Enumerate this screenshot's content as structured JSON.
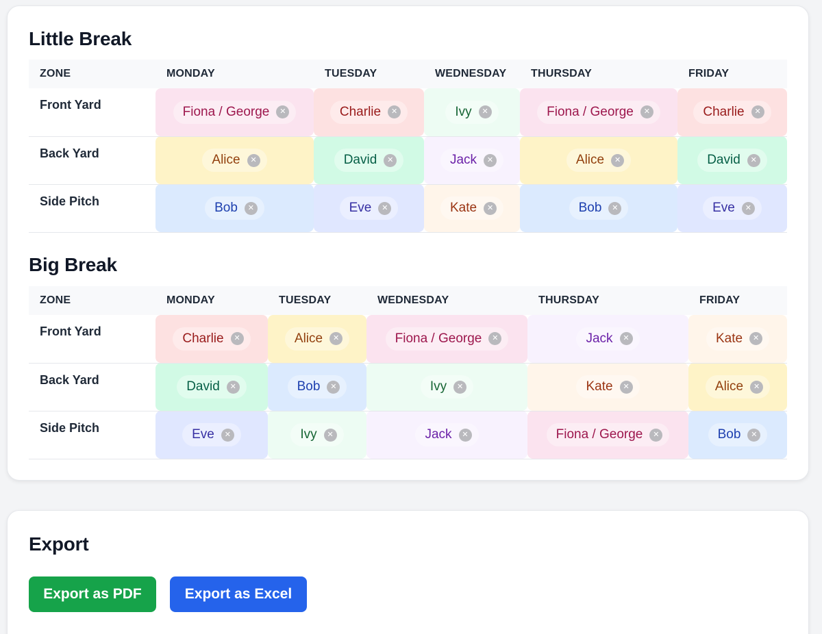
{
  "schedule": {
    "sections": [
      {
        "title": "Little Break",
        "headers": [
          "ZONE",
          "MONDAY",
          "TUESDAY",
          "WEDNESDAY",
          "THURSDAY",
          "FRIDAY"
        ],
        "rows": [
          {
            "zone": "Front Yard",
            "cells": [
              {
                "name": "Fiona / George",
                "color": "pink"
              },
              {
                "name": "Charlie",
                "color": "red"
              },
              {
                "name": "Ivy",
                "color": "mint"
              },
              {
                "name": "Fiona / George",
                "color": "pink"
              },
              {
                "name": "Charlie",
                "color": "red"
              }
            ]
          },
          {
            "zone": "Back Yard",
            "cells": [
              {
                "name": "Alice",
                "color": "yellow"
              },
              {
                "name": "David",
                "color": "green"
              },
              {
                "name": "Jack",
                "color": "lilac"
              },
              {
                "name": "Alice",
                "color": "yellow"
              },
              {
                "name": "David",
                "color": "green"
              }
            ]
          },
          {
            "zone": "Side Pitch",
            "cells": [
              {
                "name": "Bob",
                "color": "blue"
              },
              {
                "name": "Eve",
                "color": "indigo"
              },
              {
                "name": "Kate",
                "color": "peach"
              },
              {
                "name": "Bob",
                "color": "blue"
              },
              {
                "name": "Eve",
                "color": "indigo"
              }
            ]
          }
        ]
      },
      {
        "title": "Big Break",
        "headers": [
          "ZONE",
          "MONDAY",
          "TUESDAY",
          "WEDNESDAY",
          "THURSDAY",
          "FRIDAY"
        ],
        "rows": [
          {
            "zone": "Front Yard",
            "cells": [
              {
                "name": "Charlie",
                "color": "red"
              },
              {
                "name": "Alice",
                "color": "yellow"
              },
              {
                "name": "Fiona / George",
                "color": "pink"
              },
              {
                "name": "Jack",
                "color": "lilac"
              },
              {
                "name": "Kate",
                "color": "peach"
              }
            ]
          },
          {
            "zone": "Back Yard",
            "cells": [
              {
                "name": "David",
                "color": "green"
              },
              {
                "name": "Bob",
                "color": "blue"
              },
              {
                "name": "Ivy",
                "color": "mint"
              },
              {
                "name": "Kate",
                "color": "peach"
              },
              {
                "name": "Alice",
                "color": "yellow"
              }
            ]
          },
          {
            "zone": "Side Pitch",
            "cells": [
              {
                "name": "Eve",
                "color": "indigo"
              },
              {
                "name": "Ivy",
                "color": "mint"
              },
              {
                "name": "Jack",
                "color": "lilac"
              },
              {
                "name": "Fiona / George",
                "color": "pink"
              },
              {
                "name": "Bob",
                "color": "blue"
              }
            ]
          }
        ]
      }
    ],
    "remove_icon": "close-icon",
    "colors": {
      "pink": "#fbe3ef",
      "red": "#fde1e1",
      "mint": "#edfcf3",
      "yellow": "#fef3c7",
      "green": "#d1fae5",
      "lilac": "#f8f2fe",
      "blue": "#dbeafe",
      "indigo": "#e0e7ff",
      "peach": "#fff5ea"
    }
  },
  "export": {
    "title": "Export",
    "pdf_label": "Export as PDF",
    "excel_label": "Export as Excel",
    "pdf_color": "#16a34a",
    "excel_color": "#2563eb"
  }
}
